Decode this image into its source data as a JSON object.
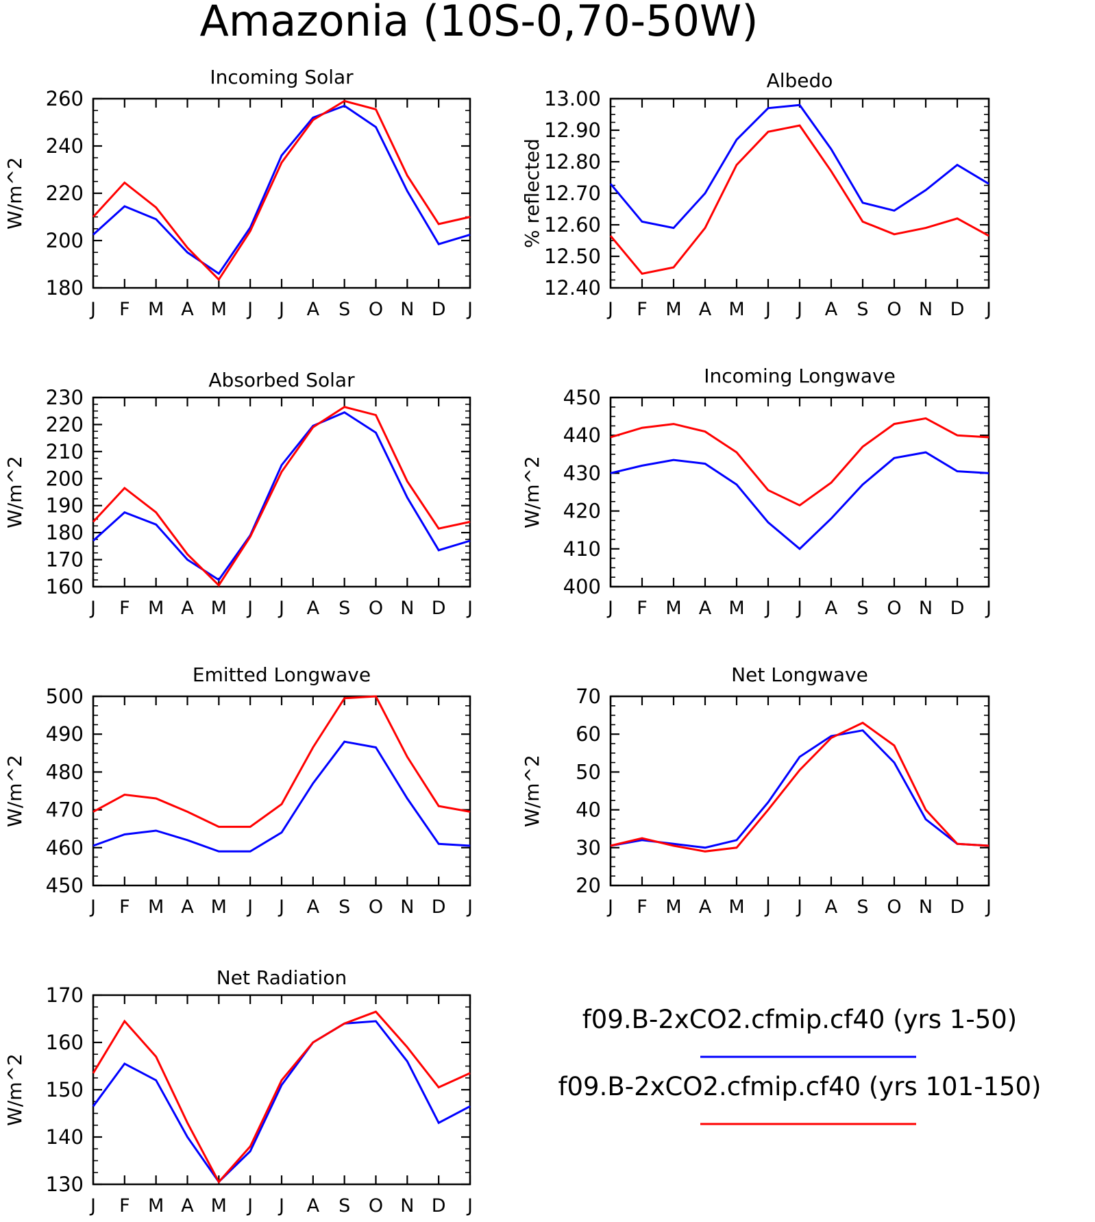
{
  "figure": {
    "title": "Amazonia (10S-0,70-50W)"
  },
  "months": [
    "J",
    "F",
    "M",
    "A",
    "M",
    "J",
    "J",
    "A",
    "S",
    "O",
    "N",
    "D",
    "J"
  ],
  "legend": [
    {
      "name": "f09.B-2xCO2.cfmip.cf40 (yrs 1-50)",
      "color": "#0000ff"
    },
    {
      "name": "f09.B-2xCO2.cfmip.cf40 (yrs 101-150)",
      "color": "#ff0000"
    }
  ],
  "chart_data": [
    {
      "type": "line",
      "title": "Incoming Solar",
      "ylabel": "W/m^2",
      "xlabel": "",
      "x": [
        "J",
        "F",
        "M",
        "A",
        "M",
        "J",
        "J",
        "A",
        "S",
        "O",
        "N",
        "D",
        "J"
      ],
      "ylim": [
        180,
        260
      ],
      "yticks": [
        180,
        200,
        220,
        240,
        260
      ],
      "ytick_labels": [
        "180",
        "200",
        "220",
        "240",
        "260"
      ],
      "series": [
        {
          "color": "#0000ff",
          "values": [
            202.5,
            214.5,
            209,
            195,
            186,
            205.5,
            236,
            252,
            257,
            248,
            221,
            198.5,
            202.5
          ]
        },
        {
          "color": "#ff0000",
          "values": [
            210,
            224.5,
            214,
            197,
            183.5,
            204,
            233,
            251,
            259,
            255.5,
            227.5,
            207,
            210
          ]
        }
      ]
    },
    {
      "type": "line",
      "title": "Albedo",
      "ylabel": "% reflected",
      "xlabel": "",
      "x": [
        "J",
        "F",
        "M",
        "A",
        "M",
        "J",
        "J",
        "A",
        "S",
        "O",
        "N",
        "D",
        "J"
      ],
      "ylim": [
        12.4,
        13.0
      ],
      "yticks": [
        12.4,
        12.5,
        12.6,
        12.7,
        12.8,
        12.9,
        13.0
      ],
      "ytick_labels": [
        "12.40",
        "12.50",
        "12.60",
        "12.70",
        "12.80",
        "12.90",
        "13.00"
      ],
      "series": [
        {
          "color": "#0000ff",
          "values": [
            12.73,
            12.61,
            12.59,
            12.7,
            12.87,
            12.97,
            12.98,
            12.84,
            12.67,
            12.645,
            12.71,
            12.79,
            12.73
          ]
        },
        {
          "color": "#ff0000",
          "values": [
            12.565,
            12.445,
            12.465,
            12.59,
            12.79,
            12.895,
            12.915,
            12.77,
            12.61,
            12.57,
            12.59,
            12.62,
            12.565
          ]
        }
      ]
    },
    {
      "type": "line",
      "title": "Absorbed Solar",
      "ylabel": "W/m^2",
      "xlabel": "",
      "x": [
        "J",
        "F",
        "M",
        "A",
        "M",
        "J",
        "J",
        "A",
        "S",
        "O",
        "N",
        "D",
        "J"
      ],
      "ylim": [
        160,
        230
      ],
      "yticks": [
        160,
        170,
        180,
        190,
        200,
        210,
        220,
        230
      ],
      "ytick_labels": [
        "160",
        "170",
        "180",
        "190",
        "200",
        "210",
        "220",
        "230"
      ],
      "series": [
        {
          "color": "#0000ff",
          "values": [
            177,
            187.5,
            183,
            170,
            162.5,
            179,
            205,
            219.5,
            224.5,
            217,
            193,
            173.5,
            177
          ]
        },
        {
          "color": "#ff0000",
          "values": [
            184,
            196.5,
            187.5,
            172,
            160.5,
            178.5,
            202.5,
            219,
            226.5,
            223.5,
            199,
            181.5,
            184
          ]
        }
      ]
    },
    {
      "type": "line",
      "title": "Incoming Longwave",
      "ylabel": "W/m^2",
      "xlabel": "",
      "x": [
        "J",
        "F",
        "M",
        "A",
        "M",
        "J",
        "J",
        "A",
        "S",
        "O",
        "N",
        "D",
        "J"
      ],
      "ylim": [
        400,
        450
      ],
      "yticks": [
        400,
        410,
        420,
        430,
        440,
        450
      ],
      "ytick_labels": [
        "400",
        "410",
        "420",
        "430",
        "440",
        "450"
      ],
      "series": [
        {
          "color": "#0000ff",
          "values": [
            430,
            432,
            433.5,
            432.5,
            427,
            417,
            410,
            418,
            427,
            434,
            435.5,
            430.5,
            430
          ]
        },
        {
          "color": "#ff0000",
          "values": [
            439.5,
            442,
            443,
            441,
            435.5,
            425.5,
            421.5,
            427.5,
            437,
            443,
            444.5,
            440,
            439.5
          ]
        }
      ]
    },
    {
      "type": "line",
      "title": "Emitted Longwave",
      "ylabel": "W/m^2",
      "xlabel": "",
      "x": [
        "J",
        "F",
        "M",
        "A",
        "M",
        "J",
        "J",
        "A",
        "S",
        "O",
        "N",
        "D",
        "J"
      ],
      "ylim": [
        450,
        500
      ],
      "yticks": [
        450,
        460,
        470,
        480,
        490,
        500
      ],
      "ytick_labels": [
        "450",
        "460",
        "470",
        "480",
        "490",
        "500"
      ],
      "series": [
        {
          "color": "#0000ff",
          "values": [
            460.5,
            463.5,
            464.5,
            462,
            459,
            459,
            464,
            477,
            488,
            486.5,
            473,
            461,
            460.5
          ]
        },
        {
          "color": "#ff0000",
          "values": [
            469.5,
            474,
            473,
            469.5,
            465.5,
            465.5,
            471.5,
            486.5,
            499.5,
            500,
            484,
            471,
            469.5
          ]
        }
      ]
    },
    {
      "type": "line",
      "title": "Net Longwave",
      "ylabel": "W/m^2",
      "xlabel": "",
      "x": [
        "J",
        "F",
        "M",
        "A",
        "M",
        "J",
        "J",
        "A",
        "S",
        "O",
        "N",
        "D",
        "J"
      ],
      "ylim": [
        20,
        70
      ],
      "yticks": [
        20,
        30,
        40,
        50,
        60,
        70
      ],
      "ytick_labels": [
        "20",
        "30",
        "40",
        "50",
        "60",
        "70"
      ],
      "series": [
        {
          "color": "#0000ff",
          "values": [
            30.5,
            32,
            31,
            30,
            32,
            42,
            54,
            59.5,
            61,
            52.5,
            37.5,
            31,
            30.5
          ]
        },
        {
          "color": "#ff0000",
          "values": [
            30.5,
            32.5,
            30.5,
            29,
            30,
            40,
            50.5,
            59,
            63,
            57,
            40,
            31,
            30.5
          ]
        }
      ]
    },
    {
      "type": "line",
      "title": "Net Radiation",
      "ylabel": "W/m^2",
      "xlabel": "",
      "x": [
        "J",
        "F",
        "M",
        "A",
        "M",
        "J",
        "J",
        "A",
        "S",
        "O",
        "N",
        "D",
        "J"
      ],
      "ylim": [
        130,
        170
      ],
      "yticks": [
        130,
        140,
        150,
        160,
        170
      ],
      "ytick_labels": [
        "130",
        "140",
        "150",
        "160",
        "170"
      ],
      "series": [
        {
          "color": "#0000ff",
          "values": [
            146.5,
            155.5,
            152,
            140,
            130.5,
            137,
            151,
            160,
            164,
            164.5,
            156,
            143,
            146.5
          ]
        },
        {
          "color": "#ff0000",
          "values": [
            153.5,
            164.5,
            157,
            143,
            130.5,
            138,
            152,
            160,
            164,
            166.5,
            159,
            150.5,
            153.5
          ]
        }
      ]
    }
  ]
}
